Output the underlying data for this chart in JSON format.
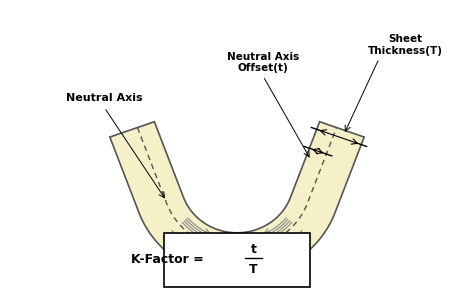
{
  "bg_color": "#ffffff",
  "sheet_color": "#f5f0c8",
  "sheet_edge_color": "#555555",
  "dashed_color": "#555555",
  "arrow_color": "#000000",
  "text_color": "#000000",
  "label_neutral_axis": "Neutral Axis",
  "label_neutral_axis_offset": "Neutral Axis\nOffset(t)",
  "label_sheet_thickness": "Sheet\nThickness(T)",
  "formula_prefix": "K-Factor = ",
  "formula_numerator": "t",
  "formula_denominator": "T",
  "fig_width": 4.74,
  "fig_height": 2.91,
  "dpi": 100
}
